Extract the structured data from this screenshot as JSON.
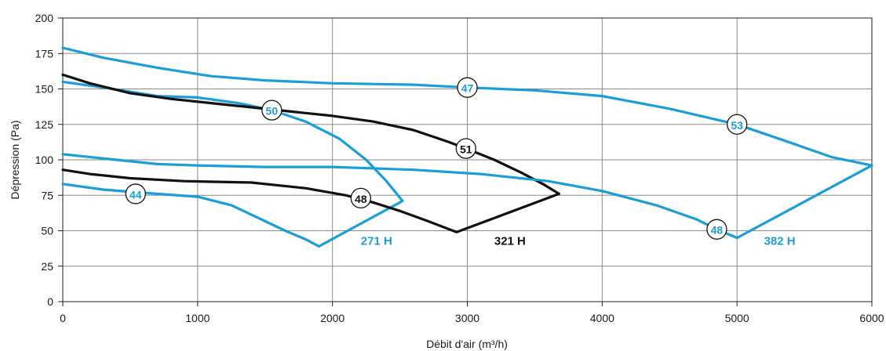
{
  "chart_data": {
    "type": "line",
    "xlabel": "Débit d'air (m³/h)",
    "ylabel": "Dépression (Pa)",
    "xlim": [
      0,
      6000
    ],
    "ylim": [
      0,
      200
    ],
    "x_ticks": [
      0,
      1000,
      2000,
      3000,
      4000,
      5000,
      6000
    ],
    "y_ticks": [
      0,
      25,
      50,
      75,
      100,
      125,
      150,
      175,
      200
    ],
    "grid": true,
    "colors": {
      "blue": "#1a9ed9",
      "black": "#111111"
    },
    "series": [
      {
        "name": "271 H",
        "color": "blue",
        "label_pos": [
          2210,
          40
        ],
        "curves": [
          [
            [
              0,
              155
            ],
            [
              300,
              151
            ],
            [
              700,
              145
            ],
            [
              1000,
              144
            ],
            [
              1300,
              140
            ],
            [
              1550,
              135
            ],
            [
              1800,
              127
            ],
            [
              2050,
              115
            ],
            [
              2250,
              100
            ],
            [
              2400,
              85
            ],
            [
              2520,
              71
            ]
          ],
          [
            [
              0,
              83
            ],
            [
              300,
              79
            ],
            [
              700,
              76
            ],
            [
              1000,
              74
            ],
            [
              1250,
              68
            ],
            [
              1450,
              59
            ],
            [
              1650,
              50
            ],
            [
              1800,
              44
            ],
            [
              1900,
              39
            ],
            [
              2520,
              71
            ]
          ]
        ],
        "markers": [
          {
            "label": "44",
            "x": 540,
            "y": 76
          },
          {
            "label": "50",
            "x": 1550,
            "y": 135
          }
        ]
      },
      {
        "name": "321 H",
        "color": "black",
        "label_pos": [
          3200,
          40
        ],
        "curves": [
          [
            [
              0,
              160
            ],
            [
              200,
              154
            ],
            [
              500,
              147
            ],
            [
              800,
              143
            ],
            [
              1100,
              140
            ],
            [
              1400,
              137
            ],
            [
              1700,
              134
            ],
            [
              2000,
              131
            ],
            [
              2300,
              127
            ],
            [
              2600,
              121
            ],
            [
              2850,
              113
            ],
            [
              2990,
              108
            ],
            [
              3200,
              100
            ],
            [
              3400,
              91
            ],
            [
              3560,
              83
            ],
            [
              3680,
              76
            ]
          ],
          [
            [
              0,
              93
            ],
            [
              200,
              90
            ],
            [
              500,
              87
            ],
            [
              900,
              85
            ],
            [
              1400,
              84
            ],
            [
              1800,
              80
            ],
            [
              2100,
              75
            ],
            [
              2300,
              70
            ],
            [
              2500,
              64
            ],
            [
              2700,
              57
            ],
            [
              2920,
              49
            ],
            [
              3680,
              76
            ]
          ]
        ],
        "markers": [
          {
            "label": "51",
            "x": 2990,
            "y": 108
          },
          {
            "label": "48",
            "x": 2210,
            "y": 73
          }
        ]
      },
      {
        "name": "382 H",
        "color": "blue",
        "label_pos": [
          5200,
          40
        ],
        "curves": [
          [
            [
              0,
              179
            ],
            [
              300,
              172
            ],
            [
              700,
              165
            ],
            [
              1100,
              159
            ],
            [
              1500,
              156
            ],
            [
              2000,
              154
            ],
            [
              2600,
              153
            ],
            [
              3000,
              151
            ],
            [
              3500,
              149
            ],
            [
              4000,
              145
            ],
            [
              4500,
              136
            ],
            [
              5000,
              125
            ],
            [
              5400,
              112
            ],
            [
              5700,
              102
            ],
            [
              6000,
              96
            ]
          ],
          [
            [
              0,
              104
            ],
            [
              400,
              100
            ],
            [
              700,
              97
            ],
            [
              1000,
              96
            ],
            [
              1500,
              95
            ],
            [
              2000,
              95
            ],
            [
              2600,
              93
            ],
            [
              3100,
              90
            ],
            [
              3600,
              85
            ],
            [
              4000,
              78
            ],
            [
              4400,
              68
            ],
            [
              4700,
              58
            ],
            [
              4850,
              51
            ],
            [
              5000,
              45
            ],
            [
              6000,
              96
            ]
          ]
        ],
        "markers": [
          {
            "label": "47",
            "x": 3000,
            "y": 151
          },
          {
            "label": "53",
            "x": 5000,
            "y": 125
          },
          {
            "label": "48",
            "x": 4850,
            "y": 51
          }
        ]
      }
    ]
  }
}
